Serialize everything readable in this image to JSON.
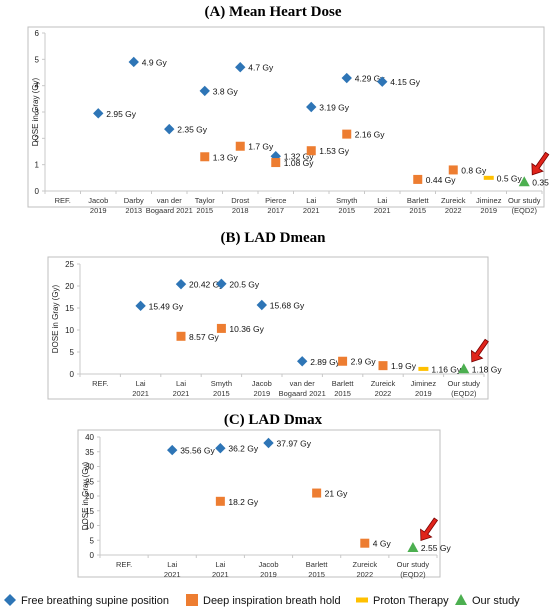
{
  "legend": [
    {
      "key": "free",
      "label": "Free breathing supine position",
      "color": "#2E75B6",
      "shape": "diamond"
    },
    {
      "key": "dibh",
      "label": "Deep inspiration breath hold",
      "color": "#ED7D31",
      "shape": "square"
    },
    {
      "key": "proton",
      "label": "Proton Therapy",
      "color": "#FFC000",
      "shape": "dash"
    },
    {
      "key": "ours",
      "label": "Our study",
      "color": "#4CAF50",
      "shape": "triangle"
    }
  ],
  "colors": {
    "arrow": "#E0241B",
    "axis": "#c8c8c8",
    "frame": "#bfbfbf"
  },
  "chart_data": [
    {
      "id": "A",
      "type": "scatter",
      "title": "(A) Mean Heart Dose",
      "ylabel": "DOSE in Gray (Gy)",
      "ylim": [
        0,
        6
      ],
      "yticks": [
        0,
        1,
        2,
        3,
        4,
        5,
        6
      ],
      "categories": [
        "REF.",
        "Jacob\n2019",
        "Darby\n2013",
        "van der\nBogaard 2021",
        "Taylor\n2015",
        "Drost\n2018",
        "Pierce\n2017",
        "Lai\n2021",
        "Smyth\n2015",
        "Lai\n2021",
        "Barlett\n2015",
        "Zureick\n2022",
        "Jiminez\n2019",
        "Our study\n(EQD2)"
      ],
      "points": [
        {
          "x": 1,
          "y": 2.95,
          "series": "free",
          "label": "2.95 Gy"
        },
        {
          "x": 2,
          "y": 4.9,
          "series": "free",
          "label": "4.9 Gy"
        },
        {
          "x": 3,
          "y": 2.35,
          "series": "free",
          "label": "2.35 Gy"
        },
        {
          "x": 4,
          "y": 3.8,
          "series": "free",
          "label": "3.8 Gy"
        },
        {
          "x": 4,
          "y": 1.3,
          "series": "dibh",
          "label": "1.3 Gy"
        },
        {
          "x": 5,
          "y": 4.7,
          "series": "free",
          "label": "4.7 Gy"
        },
        {
          "x": 5,
          "y": 1.7,
          "series": "dibh",
          "label": "1.7 Gy"
        },
        {
          "x": 6,
          "y": 1.32,
          "series": "free",
          "label": "1.32 Gy"
        },
        {
          "x": 6,
          "y": 1.08,
          "series": "dibh",
          "label": "1.08 Gy"
        },
        {
          "x": 7,
          "y": 3.19,
          "series": "free",
          "label": "3.19 Gy"
        },
        {
          "x": 7,
          "y": 1.53,
          "series": "dibh",
          "label": "1.53 Gy"
        },
        {
          "x": 8,
          "y": 4.29,
          "series": "free",
          "label": "4.29 Gy"
        },
        {
          "x": 8,
          "y": 2.16,
          "series": "dibh",
          "label": "2.16 Gy"
        },
        {
          "x": 9,
          "y": 4.15,
          "series": "free",
          "label": "4.15 Gy"
        },
        {
          "x": 10,
          "y": 0.44,
          "series": "dibh",
          "label": "0.44 Gy"
        },
        {
          "x": 11,
          "y": 0.8,
          "series": "dibh",
          "label": "0.8 Gy"
        },
        {
          "x": 12,
          "y": 0.5,
          "series": "proton",
          "label": "0.5 Gy"
        },
        {
          "x": 13,
          "y": 0.35,
          "series": "ours",
          "label": "0.35 Gy"
        }
      ]
    },
    {
      "id": "B",
      "type": "scatter",
      "title": "(B) LAD Dmean",
      "ylabel": "DOSE in Gray (Gy)",
      "ylim": [
        0,
        25
      ],
      "yticks": [
        0,
        5,
        10,
        15,
        20,
        25
      ],
      "categories": [
        "REF.",
        "Lai\n2021",
        "Lai\n2021",
        "Smyth\n2015",
        "Jacob\n2019",
        "van der\nBogaard 2021",
        "Barlett\n2015",
        "Zureick\n2022",
        "Jiminez\n2019",
        "Our study\n(EQD2)"
      ],
      "points": [
        {
          "x": 1,
          "y": 15.49,
          "series": "free",
          "label": "15.49 Gy"
        },
        {
          "x": 2,
          "y": 20.42,
          "series": "free",
          "label": "20.42 Gy"
        },
        {
          "x": 2,
          "y": 8.57,
          "series": "dibh",
          "label": "8.57 Gy"
        },
        {
          "x": 3,
          "y": 20.5,
          "series": "free",
          "label": "20.5 Gy"
        },
        {
          "x": 3,
          "y": 10.36,
          "series": "dibh",
          "label": "10.36 Gy"
        },
        {
          "x": 4,
          "y": 15.68,
          "series": "free",
          "label": "15.68 Gy"
        },
        {
          "x": 5,
          "y": 2.89,
          "series": "free",
          "label": "2.89 Gy"
        },
        {
          "x": 6,
          "y": 2.9,
          "series": "dibh",
          "label": "2.9 Gy"
        },
        {
          "x": 7,
          "y": 1.9,
          "series": "dibh",
          "label": "1.9 Gy"
        },
        {
          "x": 8,
          "y": 1.16,
          "series": "proton",
          "label": "1.16 Gy"
        },
        {
          "x": 9,
          "y": 1.18,
          "series": "ours",
          "label": "1.18 Gy"
        }
      ]
    },
    {
      "id": "C",
      "type": "scatter",
      "title": "(C) LAD Dmax",
      "ylabel": "DOSE in Gray (Gy)",
      "ylim": [
        0,
        40
      ],
      "yticks": [
        0,
        5,
        10,
        15,
        20,
        25,
        30,
        35,
        40
      ],
      "categories": [
        "REF.",
        "Lai\n2021",
        "Lai\n2021",
        "Jacob\n2019",
        "Barlett\n2015",
        "Zureick\n2022",
        "Our study\n(EQD2)"
      ],
      "points": [
        {
          "x": 1,
          "y": 35.56,
          "series": "free",
          "label": "35.56 Gy"
        },
        {
          "x": 2,
          "y": 36.2,
          "series": "free",
          "label": "36.2 Gy"
        },
        {
          "x": 2,
          "y": 18.2,
          "series": "dibh",
          "label": "18.2 Gy"
        },
        {
          "x": 3,
          "y": 37.97,
          "series": "free",
          "label": "37.97 Gy"
        },
        {
          "x": 4,
          "y": 21,
          "series": "dibh",
          "label": "21 Gy"
        },
        {
          "x": 5,
          "y": 4,
          "series": "dibh",
          "label": "4 Gy"
        },
        {
          "x": 6,
          "y": 2.55,
          "series": "ours",
          "label": "2.55 Gy"
        }
      ]
    }
  ]
}
